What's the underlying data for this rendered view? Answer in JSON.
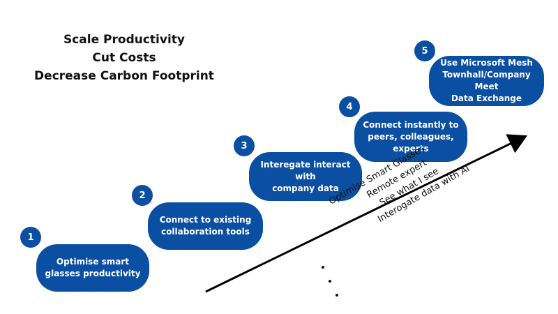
{
  "headline": {
    "line1": "Scale Productivity",
    "line2": "Cut Costs",
    "line3": "Decrease Carbon Footprint"
  },
  "steps": [
    {
      "number": "1",
      "text": "Optimise smart\nglasses productivity"
    },
    {
      "number": "2",
      "text": "Connect to existing\ncollaboration tools"
    },
    {
      "number": "3",
      "text": "Interegate interact with\ncompany data"
    },
    {
      "number": "4",
      "text": "Connect instantly to\npeers, colleagues,\nexperts"
    },
    {
      "number": "5",
      "text": "Use Microsoft Mesh\nTownhall/Company Meet\nData Exchange"
    }
  ],
  "arrow_text": {
    "title": "Optimise Smart Glasses",
    "items": [
      "Remote expert",
      "See what I see",
      "Interogate data with AI"
    ]
  },
  "colors": {
    "pill": "#0b4fa3",
    "text_on_pill": "#ffffff",
    "headline": "#111111",
    "arrow": "#000000"
  }
}
